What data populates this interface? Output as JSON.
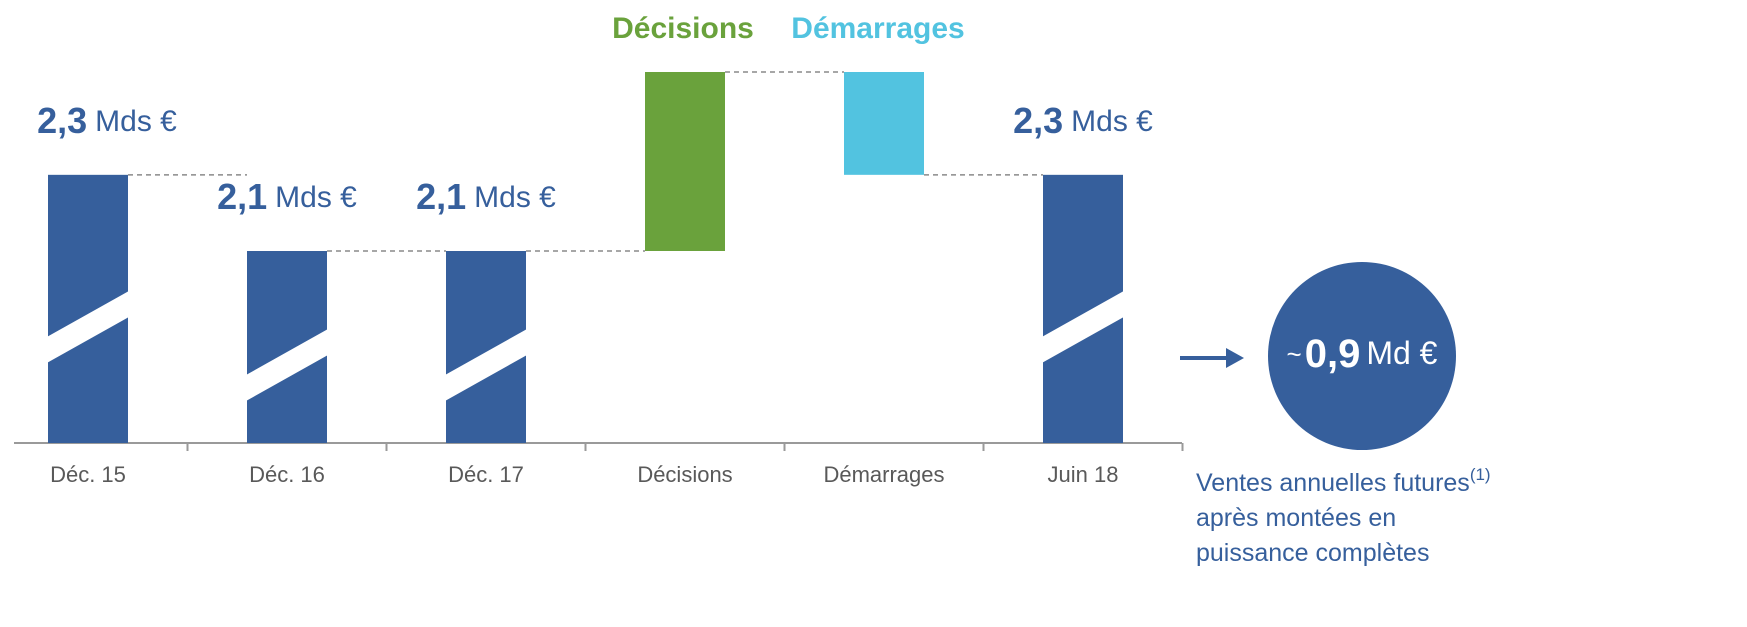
{
  "chart_data": {
    "type": "waterfall",
    "categories": [
      "Déc. 15",
      "Déc. 16",
      "Déc.  17",
      "Décisions",
      "Démarrages",
      "Juin 18"
    ],
    "values": [
      2.3,
      2.1,
      2.1,
      0.47,
      -0.27,
      2.3
    ],
    "value_labels": [
      "2,3",
      "2,1",
      "2,1",
      null,
      null,
      "2,3"
    ],
    "unit": "Mds €",
    "measure": [
      "absolute",
      "absolute",
      "absolute",
      "relative",
      "relative",
      "absolute"
    ],
    "colors": [
      "#365f9c",
      "#365f9c",
      "#365f9c",
      "#6aa23c",
      "#52c3e0",
      "#365f9c"
    ],
    "legend": [
      {
        "name": "Décisions",
        "color": "#6aa23c"
      },
      {
        "name": "Démarrages",
        "color": "#52c3e0"
      }
    ],
    "callout": {
      "prefix": "~",
      "value": 0.9,
      "value_label": "0,9",
      "unit": "Md €",
      "color": "#365f9c",
      "text": [
        "Ventes annuelles futures",
        "après montées en",
        "puissance complètes"
      ],
      "footnote": "(1)"
    }
  }
}
